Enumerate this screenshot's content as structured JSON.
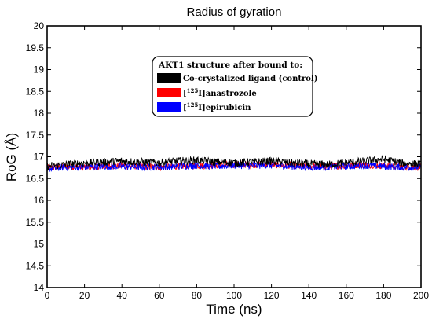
{
  "chart_data": {
    "type": "line",
    "title": "Radius of gyration",
    "xlabel": "Time (ns)",
    "ylabel": "RoG (Å)",
    "xlim": [
      0,
      200
    ],
    "ylim": [
      14,
      20
    ],
    "xticks": [
      "0",
      "20",
      "40",
      "60",
      "80",
      "100",
      "120",
      "140",
      "160",
      "180",
      "200"
    ],
    "yticks": [
      "14",
      "14.5",
      "15",
      "15.5",
      "16",
      "16.5",
      "17",
      "17.5",
      "18",
      "18.5",
      "19",
      "19.5",
      "20"
    ],
    "grid": false,
    "legend": {
      "title": "AKT1 structure after bound to:",
      "placement": "top-center",
      "entries": [
        {
          "label": "Co-crystalized ligand (control)",
          "sup": "",
          "rest": ""
        },
        {
          "label": "[",
          "sup": "125",
          "rest": "I]anastrozole"
        },
        {
          "label": "[",
          "sup": "125",
          "rest": "I]epirubicin"
        }
      ]
    },
    "series": [
      {
        "name": "Co-crystalized ligand (control)",
        "color": "#000000",
        "x": [
          0,
          10,
          20,
          30,
          40,
          50,
          60,
          70,
          80,
          90,
          100,
          110,
          120,
          130,
          140,
          150,
          160,
          170,
          180,
          190,
          200
        ],
        "y": [
          16.78,
          16.82,
          16.86,
          16.88,
          16.9,
          16.88,
          16.86,
          16.9,
          16.92,
          16.88,
          16.86,
          16.88,
          16.9,
          16.86,
          16.84,
          16.82,
          16.86,
          16.9,
          16.94,
          16.86,
          16.82
        ],
        "noise": 0.09
      },
      {
        "name": "[125I]anastrozole",
        "color": "#ff0000",
        "x": [
          0,
          10,
          20,
          30,
          40,
          50,
          60,
          70,
          80,
          90,
          100,
          110,
          120,
          130,
          140,
          150,
          160,
          170,
          180,
          190,
          200
        ],
        "y": [
          16.74,
          16.78,
          16.76,
          16.78,
          16.8,
          16.78,
          16.76,
          16.78,
          16.8,
          16.8,
          16.82,
          16.82,
          16.82,
          16.8,
          16.78,
          16.78,
          16.8,
          16.82,
          16.8,
          16.78,
          16.76
        ],
        "noise": 0.08
      },
      {
        "name": "[125I]epirubicin",
        "color": "#0000ff",
        "x": [
          0,
          10,
          20,
          30,
          40,
          50,
          60,
          70,
          80,
          90,
          100,
          110,
          120,
          130,
          140,
          150,
          160,
          170,
          180,
          190,
          200
        ],
        "y": [
          16.72,
          16.76,
          16.76,
          16.78,
          16.78,
          16.76,
          16.76,
          16.78,
          16.8,
          16.78,
          16.8,
          16.8,
          16.8,
          16.78,
          16.76,
          16.76,
          16.78,
          16.8,
          16.78,
          16.76,
          16.76
        ],
        "noise": 0.08
      }
    ]
  }
}
